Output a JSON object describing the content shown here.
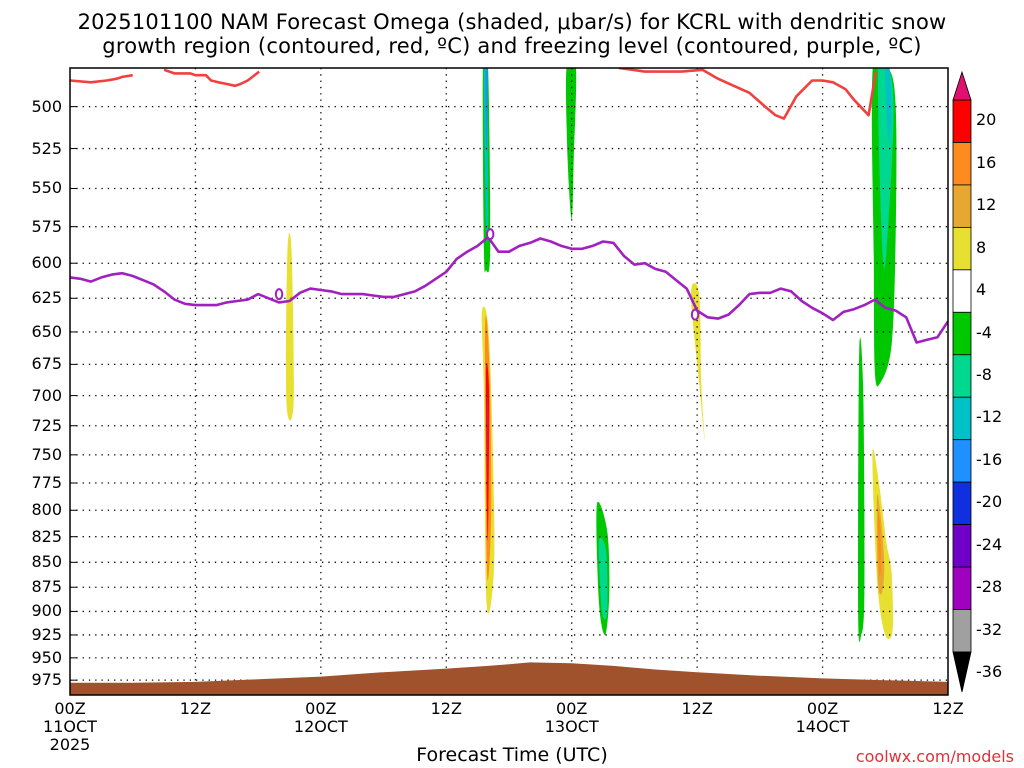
{
  "title": {
    "line1": "2025101100 NAM Forecast Omega (shaded, μbar/s) for KCRL with dendritic snow",
    "line2": "growth region (contoured, red, ºC) and freezing level (contoured, purple, ºC)"
  },
  "credit": "coolwx.com/models",
  "chart_data": {
    "type": "heatmap",
    "xlabel": "Forecast Time (UTC)",
    "x_range_hours": [
      0,
      84
    ],
    "x_ticks": [
      {
        "hour": 0,
        "line1": "00Z",
        "line2": "11OCT",
        "line3": "2025"
      },
      {
        "hour": 12,
        "line1": "12Z",
        "line2": "",
        "line3": ""
      },
      {
        "hour": 24,
        "line1": "00Z",
        "line2": "12OCT",
        "line3": ""
      },
      {
        "hour": 36,
        "line1": "12Z",
        "line2": "",
        "line3": ""
      },
      {
        "hour": 48,
        "line1": "00Z",
        "line2": "13OCT",
        "line3": ""
      },
      {
        "hour": 60,
        "line1": "12Z",
        "line2": "",
        "line3": ""
      },
      {
        "hour": 72,
        "line1": "00Z",
        "line2": "14OCT",
        "line3": ""
      },
      {
        "hour": 84,
        "line1": "12Z",
        "line2": "",
        "line3": ""
      }
    ],
    "ylabel": "",
    "y_scale": "log-pressure",
    "y_range_hpa": [
      478,
      992
    ],
    "y_ticks": [
      500,
      525,
      550,
      575,
      600,
      625,
      650,
      675,
      700,
      725,
      750,
      775,
      800,
      825,
      850,
      875,
      900,
      925,
      950,
      975
    ],
    "grid": "dotted",
    "colorbar": {
      "labels": [
        "20",
        "16",
        "12",
        "8",
        "4",
        "-4",
        "-8",
        "-12",
        "-16",
        "-20",
        "-24",
        "-28",
        "-32",
        "-36"
      ],
      "colors": [
        "#ff0000",
        "#ff8a1e",
        "#e8a830",
        "#e8e030",
        "#ffffff",
        "#00c800",
        "#00d890",
        "#00c0c8",
        "#1e90ff",
        "#1030e0",
        "#7000c8",
        "#a000c0",
        "#a0a0a0"
      ],
      "top_color": "#e0106e",
      "bottom_color": "#000000"
    },
    "omega_regions": [
      {
        "color": "#e8e030",
        "t": [
          20.8,
          21.2,
          21.4,
          20.7
        ],
        "p": [
          592,
          592,
          705,
          705
        ]
      },
      {
        "color": "#e8e030",
        "t": [
          39.4,
          40.1,
          40.6,
          40.3,
          39.8,
          39.6
        ],
        "p": [
          635,
          655,
          820,
          890,
          880,
          700
        ]
      },
      {
        "color": "#ff8a1e",
        "t": [
          39.7,
          40.1,
          40.3,
          39.9
        ],
        "p": [
          650,
          670,
          800,
          860
        ]
      },
      {
        "color": "#ff0000",
        "t": [
          39.8,
          40.1,
          40.0,
          39.9
        ],
        "p": [
          680,
          700,
          820,
          800
        ]
      },
      {
        "color": "#e0106e",
        "t": [
          39.9,
          40.05,
          40.0,
          39.95
        ],
        "p": [
          700,
          720,
          780,
          760
        ]
      },
      {
        "color": "#00c800",
        "t": [
          39.5,
          40.0,
          40.2,
          39.8,
          39.6
        ],
        "p": [
          478,
          478,
          590,
          605,
          590
        ]
      },
      {
        "color": "#00c0c8",
        "t": [
          39.6,
          39.9,
          40.0,
          39.8
        ],
        "p": [
          478,
          478,
          570,
          575
        ]
      },
      {
        "color": "#1e90ff",
        "t": [
          39.75,
          39.95,
          39.9,
          39.8
        ],
        "p": [
          478,
          478,
          520,
          520
        ]
      },
      {
        "color": "#00c800",
        "t": [
          47.5,
          48.4,
          48.2,
          48.0,
          47.6
        ],
        "p": [
          478,
          478,
          530,
          570,
          530
        ]
      },
      {
        "color": "#00c800",
        "t": [
          50.4,
          51.4,
          51.6,
          51.2,
          50.6
        ],
        "p": [
          795,
          820,
          880,
          925,
          890
        ]
      },
      {
        "color": "#00d890",
        "t": [
          50.6,
          51.3,
          51.4,
          50.9
        ],
        "p": [
          830,
          840,
          900,
          900
        ]
      },
      {
        "color": "#e8e030",
        "t": [
          59.4,
          60.2,
          60.4,
          60.7,
          60.6,
          60.2
        ],
        "p": [
          622,
          622,
          690,
          735,
          728,
          690
        ]
      },
      {
        "color": "#00c800",
        "t": [
          75.5,
          75.9,
          76.0,
          75.7,
          75.4
        ],
        "p": [
          665,
          700,
          880,
          925,
          900
        ]
      },
      {
        "color": "#00c800",
        "t": [
          76.8,
          78.3,
          79.0,
          79.0,
          78.6,
          77.5,
          77.0,
          76.9
        ],
        "p": [
          478,
          478,
          500,
          580,
          660,
          690,
          680,
          600
        ]
      },
      {
        "color": "#00d890",
        "t": [
          77.3,
          78.3,
          78.8,
          78.4,
          77.8
        ],
        "p": [
          478,
          478,
          500,
          560,
          600
        ]
      },
      {
        "color": "#00c0c8",
        "t": [
          78.0,
          78.4,
          78.6,
          78.3
        ],
        "p": [
          478,
          478,
          500,
          520
        ]
      },
      {
        "color": "#e8e030",
        "t": [
          76.8,
          77.4,
          78.1,
          78.6,
          78.7,
          78.0,
          77.3,
          76.9
        ],
        "p": [
          745,
          775,
          830,
          860,
          920,
          925,
          880,
          800
        ]
      },
      {
        "color": "#e8a830",
        "t": [
          77.2,
          77.5,
          77.9,
          77.7,
          77.3
        ],
        "p": [
          790,
          800,
          850,
          880,
          870
        ]
      },
      {
        "color": "#ff8a1e",
        "t": [
          77.3,
          77.5,
          77.6,
          77.4
        ],
        "p": [
          805,
          815,
          855,
          860
        ]
      }
    ],
    "dgz_contour": {
      "color": "#f04040",
      "segments": [
        {
          "t": [
            0,
            2,
            3.5,
            4.5,
            5,
            6
          ],
          "p": [
            485,
            486,
            485,
            484,
            483,
            482
          ]
        },
        {
          "t": [
            9,
            10,
            11.5,
            12,
            13,
            13.5,
            14.2,
            15,
            15.8,
            16.3,
            17,
            18.1
          ],
          "p": [
            479,
            481,
            481,
            482,
            482,
            485,
            486,
            487,
            488,
            487,
            485,
            480
          ]
        },
        {
          "t": [
            52.5,
            55,
            58.5,
            60.5,
            62,
            63.5,
            65,
            66.5,
            67.5,
            68.3,
            69.5,
            71,
            72,
            73,
            74.2,
            75,
            76.4,
            77.1
          ],
          "p": [
            478,
            480,
            480,
            479,
            484,
            488,
            492,
            500,
            505,
            507,
            494,
            485,
            485,
            486,
            490,
            496,
            505,
            480
          ]
        }
      ]
    },
    "freezing_level": {
      "color": "#a020c0",
      "t": [
        0,
        1,
        2,
        3,
        4,
        5,
        6,
        7,
        8,
        9,
        10,
        11,
        12,
        13,
        14,
        15,
        16,
        17,
        18,
        19,
        20,
        21,
        22,
        23,
        24,
        25,
        26,
        27,
        28,
        29,
        30,
        31,
        32,
        33,
        34,
        35,
        36,
        37,
        38,
        39,
        40,
        41,
        42,
        43,
        44,
        45,
        46,
        47,
        48,
        49,
        50,
        51,
        52,
        53,
        54,
        55,
        56,
        57,
        58,
        59,
        60,
        61,
        62,
        63,
        64,
        65,
        66,
        67,
        68,
        69,
        70,
        71,
        72,
        73,
        74,
        75,
        76,
        77,
        78,
        79,
        80,
        81,
        82,
        83,
        84
      ],
      "p": [
        610,
        611,
        613,
        610,
        608,
        607,
        609,
        612,
        615,
        620,
        626,
        629,
        630,
        630,
        630,
        628,
        627,
        626,
        622,
        625,
        628,
        627,
        621,
        618,
        619,
        620,
        622,
        622,
        622,
        623,
        624,
        624,
        622,
        620,
        616,
        611,
        606,
        597,
        592,
        588,
        582,
        592,
        592,
        588,
        586,
        583,
        585,
        588,
        590,
        590,
        588,
        585,
        586,
        595,
        601,
        600,
        604,
        606,
        612,
        618,
        634,
        639,
        640,
        637,
        630,
        622,
        621,
        621,
        618,
        620,
        627,
        632,
        636,
        641,
        635,
        633,
        630,
        626,
        632,
        634,
        639,
        658,
        656,
        654,
        642
      ]
    },
    "freezing_level_labels": [
      {
        "t": 20.0,
        "p": 622,
        "text": "0"
      },
      {
        "t": 40.2,
        "p": 580,
        "text": "0"
      },
      {
        "t": 59.8,
        "p": 637,
        "text": "0"
      }
    ],
    "terrain": {
      "color": "#a0522d",
      "t": [
        0,
        6,
        12,
        18,
        24,
        30,
        36,
        40,
        42,
        44,
        48,
        52,
        56,
        60,
        66,
        72,
        78,
        84
      ],
      "p": [
        978,
        978,
        977,
        974,
        971,
        966,
        962,
        959,
        957,
        955,
        956,
        959,
        963,
        966,
        970,
        973,
        975,
        977
      ]
    }
  }
}
